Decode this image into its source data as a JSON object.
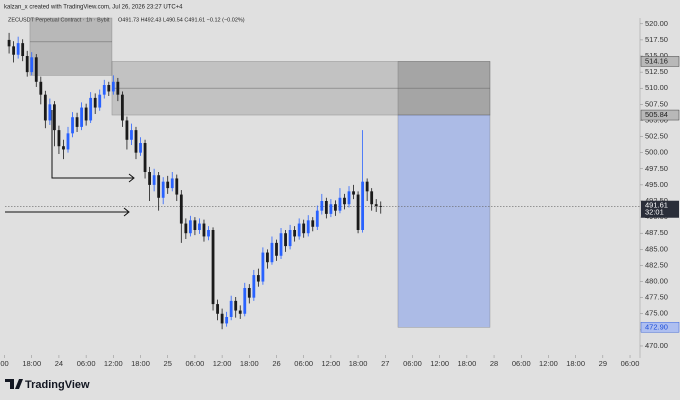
{
  "chart_data": {
    "type": "candlestick",
    "title": "kalzan_x created with TradingView.com, Jul 26, 2026 23:27 UTC+4",
    "subtitle": "ZECUSDT Perpetual Contract · 1h · Bybit",
    "ohlc_legend": "O491.73 H492.43 L490.54 C491.61 −0.12 (−0.02%)",
    "up_color": "#2962ff",
    "down_color": "#1a1a1a",
    "candles": {
      "x": [
        -11,
        -10,
        -9,
        -8,
        -7,
        -6,
        -5,
        -4,
        -3,
        -2,
        -1,
        0,
        1,
        2,
        3,
        4,
        5,
        6,
        7,
        8,
        9,
        10,
        11,
        12,
        13,
        14,
        15,
        16,
        17,
        18,
        19,
        20,
        21,
        22,
        23,
        24,
        25,
        26,
        27,
        28,
        29,
        30,
        31,
        32,
        33,
        34,
        35,
        36,
        37,
        38,
        39,
        40,
        41,
        42,
        43,
        44,
        45,
        46,
        47,
        48,
        49,
        50,
        51,
        52,
        53,
        54,
        55,
        56,
        57,
        58,
        59,
        60,
        61,
        62,
        63,
        64,
        65,
        66,
        67,
        68,
        69,
        70,
        71
      ],
      "open": [
        517.5,
        516.5,
        515.2,
        517.0,
        515.0,
        512.5,
        514.8,
        511.0,
        509.0,
        505.0,
        507.5,
        503.5,
        501.0,
        500.5,
        503.0,
        505.5,
        504.0,
        507.0,
        505.0,
        508.5,
        507.0,
        509.0,
        510.5,
        509.5,
        511.0,
        509.0,
        505.0,
        502.0,
        503.5,
        500.0,
        501.5,
        497.0,
        495.0,
        496.5,
        493.0,
        495.5,
        494.5,
        496.0,
        493.5,
        489.0,
        487.5,
        489.5,
        488.0,
        489.0,
        487.0,
        488.0,
        476.5,
        475.0,
        473.5,
        474.5,
        477.0,
        475.5,
        475.0,
        479.0,
        477.5,
        481.0,
        480.0,
        484.5,
        483.0,
        486.0,
        484.0,
        487.5,
        485.5,
        488.0,
        487.0,
        489.0,
        487.5,
        489.5,
        488.5,
        491.0,
        492.5,
        490.5,
        492.0,
        491.0,
        493.0,
        492.0,
        494.0,
        493.5,
        488.0,
        495.5,
        494.0,
        492.0,
        491.73
      ],
      "high": [
        518.6,
        517.3,
        518.0,
        517.6,
        515.8,
        515.6,
        515.3,
        511.8,
        509.6,
        508.4,
        508.0,
        504.2,
        502.0,
        504.0,
        506.3,
        506.2,
        507.8,
        507.6,
        509.4,
        509.2,
        509.8,
        511.3,
        511.0,
        512.0,
        511.6,
        509.5,
        505.6,
        504.5,
        504.0,
        502.4,
        502.0,
        497.8,
        497.5,
        497.0,
        496.2,
        496.4,
        497.0,
        496.6,
        494.2,
        489.8,
        490.2,
        490.0,
        489.8,
        489.6,
        488.6,
        488.4,
        477.2,
        475.8,
        475.3,
        477.8,
        477.6,
        476.3,
        479.8,
        479.6,
        481.8,
        482.0,
        485.3,
        485.0,
        487.0,
        486.5,
        488.3,
        488.0,
        488.8,
        488.6,
        489.8,
        489.6,
        490.3,
        490.0,
        491.8,
        493.6,
        493.0,
        492.8,
        492.6,
        494.5,
        493.6,
        494.8,
        495.0,
        494.0,
        503.5,
        496.0,
        494.5,
        492.8,
        492.43
      ],
      "low": [
        515.4,
        514.0,
        514.6,
        514.2,
        511.8,
        512.0,
        510.2,
        507.5,
        503.8,
        504.3,
        501.0,
        499.8,
        499.0,
        500.0,
        502.4,
        503.2,
        503.5,
        504.2,
        504.6,
        506.0,
        506.5,
        508.4,
        508.8,
        509.0,
        508.0,
        504.0,
        500.5,
        501.2,
        499.0,
        499.5,
        496.0,
        492.5,
        494.0,
        491.0,
        492.0,
        493.6,
        494.0,
        492.5,
        486.0,
        486.6,
        487.0,
        487.2,
        487.4,
        486.2,
        486.4,
        475.5,
        474.0,
        472.6,
        473.0,
        474.0,
        474.4,
        474.2,
        474.6,
        476.6,
        477.0,
        479.2,
        479.5,
        482.0,
        482.6,
        483.2,
        483.5,
        484.6,
        485.0,
        486.2,
        486.5,
        486.8,
        487.0,
        487.8,
        488.0,
        490.4,
        489.8,
        490.0,
        490.2,
        490.6,
        491.2,
        491.5,
        492.8,
        487.5,
        487.6,
        492.5,
        491.0,
        490.8,
        490.54
      ],
      "close": [
        516.5,
        515.2,
        517.0,
        515.0,
        512.5,
        514.8,
        511.0,
        509.0,
        505.0,
        507.5,
        503.5,
        501.0,
        500.5,
        503.0,
        505.5,
        504.0,
        507.0,
        505.0,
        508.5,
        507.0,
        509.0,
        510.5,
        509.5,
        511.0,
        509.0,
        505.0,
        502.0,
        503.5,
        500.0,
        501.5,
        497.0,
        495.0,
        496.5,
        493.0,
        495.5,
        494.5,
        496.0,
        493.5,
        489.0,
        487.5,
        489.5,
        488.0,
        489.0,
        487.0,
        488.0,
        476.5,
        475.0,
        473.5,
        474.5,
        477.0,
        475.5,
        475.0,
        479.0,
        477.5,
        481.0,
        480.0,
        484.5,
        483.0,
        486.0,
        484.0,
        487.5,
        485.5,
        488.0,
        487.0,
        489.0,
        487.5,
        489.5,
        488.5,
        491.0,
        492.5,
        490.5,
        492.0,
        491.0,
        493.0,
        492.0,
        494.0,
        493.5,
        488.0,
        495.5,
        494.0,
        492.0,
        491.73,
        491.61
      ]
    },
    "xlim": [
      -11.9,
      128.2
    ],
    "ylim": [
      468.6,
      520.9
    ],
    "xticks": [
      {
        "value": -12,
        "label": "00"
      },
      {
        "value": -6,
        "label": "18:00"
      },
      {
        "value": 0,
        "label": "24"
      },
      {
        "value": 6,
        "label": "06:00"
      },
      {
        "value": 12,
        "label": "12:00"
      },
      {
        "value": 18,
        "label": "18:00"
      },
      {
        "value": 24,
        "label": "25"
      },
      {
        "value": 30,
        "label": "06:00"
      },
      {
        "value": 36,
        "label": "12:00"
      },
      {
        "value": 42,
        "label": "18:00"
      },
      {
        "value": 48,
        "label": "26"
      },
      {
        "value": 54,
        "label": "06:00"
      },
      {
        "value": 60,
        "label": "12:00"
      },
      {
        "value": 66,
        "label": "18:00"
      },
      {
        "value": 72,
        "label": "27"
      },
      {
        "value": 78,
        "label": "06:00"
      },
      {
        "value": 84,
        "label": "12:00"
      },
      {
        "value": 90,
        "label": "18:00"
      },
      {
        "value": 96,
        "label": "28"
      },
      {
        "value": 102,
        "label": "06:00"
      },
      {
        "value": 108,
        "label": "12:00"
      },
      {
        "value": 114,
        "label": "18:00"
      },
      {
        "value": 120,
        "label": "29"
      },
      {
        "value": 126,
        "label": "06:00"
      }
    ],
    "yticks": [
      {
        "value": 520,
        "label": "520.00"
      },
      {
        "value": 517.5,
        "label": "517.50"
      },
      {
        "value": 515,
        "label": "515.00"
      },
      {
        "value": 512.5,
        "label": "512.50"
      },
      {
        "value": 510,
        "label": "510.00"
      },
      {
        "value": 507.5,
        "label": "507.50"
      },
      {
        "value": 505,
        "label": "505.00"
      },
      {
        "value": 502.5,
        "label": "502.50"
      },
      {
        "value": 500,
        "label": "500.00"
      },
      {
        "value": 497.5,
        "label": "497.50"
      },
      {
        "value": 495,
        "label": "495.00"
      },
      {
        "value": 492.5,
        "label": "492.50"
      },
      {
        "value": 490,
        "label": "490.00"
      },
      {
        "value": 487.5,
        "label": "487.50"
      },
      {
        "value": 485,
        "label": "485.00"
      },
      {
        "value": 482.5,
        "label": "482.50"
      },
      {
        "value": 480,
        "label": "480.00"
      },
      {
        "value": 477.5,
        "label": "477.50"
      },
      {
        "value": 475,
        "label": "475.00"
      },
      {
        "value": 472.5,
        "label": "472.50"
      },
      {
        "value": 470,
        "label": "470.00"
      }
    ],
    "zones": [
      {
        "x": [
          -6.4,
          11.7
        ],
        "y": [
          520.9,
          512.0
        ],
        "mid": 517.2,
        "fill": "rgba(110,110,110,0.35)"
      },
      {
        "x": [
          11.7,
          95.1
        ],
        "y": [
          514.16,
          505.84
        ],
        "mid": 510.0,
        "fill": "rgba(130,130,130,0.32)"
      },
      {
        "x": [
          74.8,
          95.1
        ],
        "y": [
          514.16,
          505.84
        ],
        "fill": "rgba(100,100,100,0.3)"
      },
      {
        "x": [
          74.8,
          95.1
        ],
        "y": [
          505.84,
          472.9
        ],
        "fill": "rgba(120,150,235,0.5)"
      }
    ],
    "price_tags": [
      {
        "value": 514.16,
        "label": "514.16",
        "fill": "#b8b8b8",
        "text_color": "#222"
      },
      {
        "value": 505.84,
        "label": "505.84",
        "fill": "#b8b8b8",
        "text_color": "#222"
      },
      {
        "value": 472.9,
        "label": "472.90",
        "fill": "#aebff0",
        "text_color": "#1f4fd8"
      }
    ],
    "last_price": {
      "value": 491.61,
      "label": "491.61",
      "countdown": "32:01"
    }
  },
  "footer": {
    "brand": "TradingView"
  }
}
